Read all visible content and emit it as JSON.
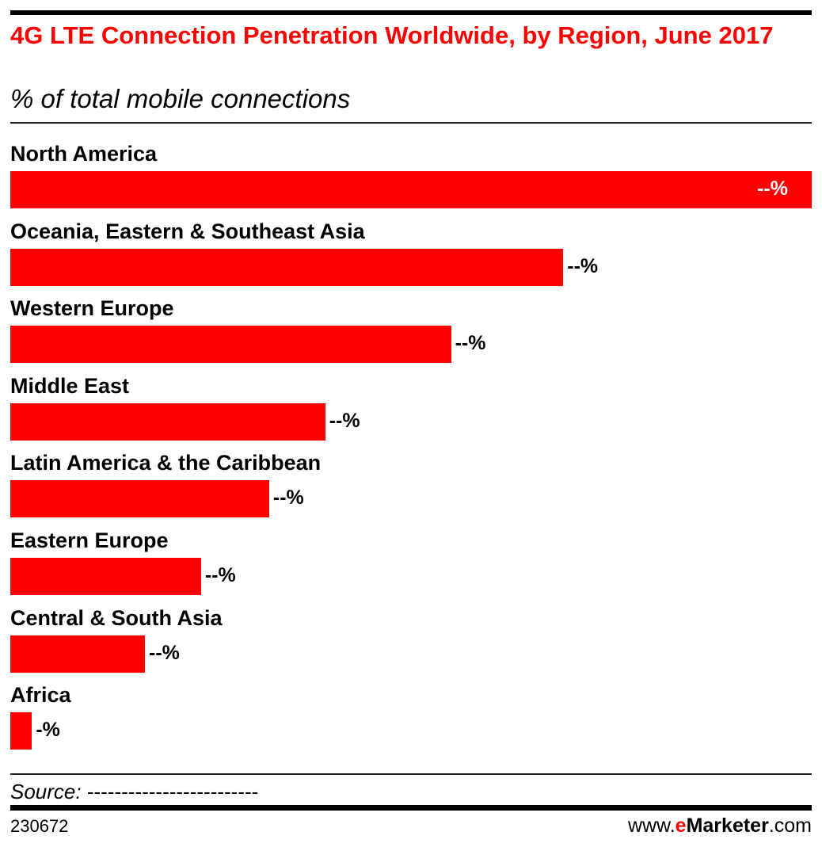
{
  "chart_data": {
    "type": "bar",
    "orientation": "horizontal",
    "title": "4G LTE Connection Penetration Worldwide, by Region, June 2017",
    "subtitle": "% of total mobile connections",
    "categories": [
      "North America",
      "Oceania, Eastern & Southeast Asia",
      "Western Europe",
      "Middle East",
      "Latin America & the Caribbean",
      "Eastern Europe",
      "Central & South Asia",
      "Africa"
    ],
    "values": [
      100,
      69,
      55,
      39.3,
      32.3,
      23.8,
      16.8,
      2.7
    ],
    "value_note": "relative bar lengths (North America = 100); actual values masked",
    "data_labels": [
      "--%",
      "--%",
      "--%",
      "--%",
      "--%",
      "--%",
      "--%",
      "-%"
    ],
    "xlabel": "",
    "ylabel": "",
    "grid": false,
    "bar_color": "#ff0000"
  },
  "footer": {
    "source_label": "Source:",
    "source_text": "-------------------------",
    "chart_id": "230672",
    "logo_prefix": "www.",
    "logo_e": "e",
    "logo_main": "Marketer",
    "logo_suffix": ".com"
  }
}
